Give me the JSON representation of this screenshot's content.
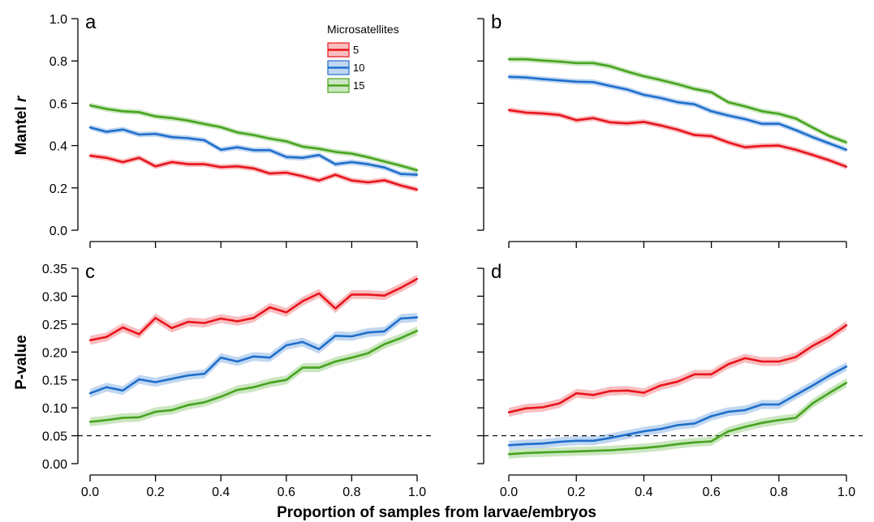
{
  "figure": {
    "x_axis_title": "Proportion of samples from larvae/embryos",
    "y_axis_title_top_main": "Mantel ",
    "y_axis_title_top_italic": "r",
    "y_axis_title_bottom": "P-value",
    "legend_title": "Microsatellites"
  },
  "colors": {
    "5": "#e8141c",
    "10": "#1f6fcc",
    "15": "#46a41e"
  },
  "chart_data": [
    {
      "type": "line",
      "panel": "a",
      "xlim": [
        0,
        1
      ],
      "ylim": [
        0,
        1
      ],
      "x_ticks": [
        0,
        0.2,
        0.4,
        0.6,
        0.8,
        1
      ],
      "x_tick_labels": [
        "0.0",
        "0.2",
        "0.4",
        "0.6",
        "0.8",
        "1.0"
      ],
      "y_ticks": [
        0,
        0.2,
        0.4,
        0.6,
        0.8,
        1
      ],
      "y_tick_labels": [
        "0.0",
        "0.2",
        "0.4",
        "0.6",
        "0.8",
        "1.0"
      ],
      "show_x_tick_labels": false,
      "show_y_tick_labels": true,
      "reference_line": null,
      "band_half_width": 0.013,
      "x": [
        0,
        0.05,
        0.1,
        0.15,
        0.2,
        0.25,
        0.3,
        0.35,
        0.4,
        0.45,
        0.5,
        0.55,
        0.6,
        0.65,
        0.7,
        0.75,
        0.8,
        0.85,
        0.9,
        0.95,
        1.0
      ],
      "series": [
        {
          "name": "5",
          "values": [
            0.352,
            0.342,
            0.322,
            0.342,
            0.302,
            0.322,
            0.312,
            0.312,
            0.298,
            0.302,
            0.292,
            0.268,
            0.272,
            0.255,
            0.235,
            0.262,
            0.235,
            0.226,
            0.236,
            0.212,
            0.192
          ]
        },
        {
          "name": "10",
          "values": [
            0.486,
            0.465,
            0.476,
            0.452,
            0.455,
            0.44,
            0.435,
            0.425,
            0.38,
            0.392,
            0.378,
            0.378,
            0.346,
            0.342,
            0.355,
            0.312,
            0.322,
            0.312,
            0.296,
            0.266,
            0.262
          ]
        },
        {
          "name": "15",
          "values": [
            0.59,
            0.573,
            0.562,
            0.558,
            0.538,
            0.53,
            0.518,
            0.502,
            0.487,
            0.462,
            0.45,
            0.433,
            0.42,
            0.395,
            0.385,
            0.37,
            0.362,
            0.345,
            0.325,
            0.305,
            0.283
          ]
        }
      ]
    },
    {
      "type": "line",
      "panel": "b",
      "xlim": [
        0,
        1
      ],
      "ylim": [
        0,
        1
      ],
      "x_ticks": [
        0,
        0.2,
        0.4,
        0.6,
        0.8,
        1
      ],
      "x_tick_labels": [
        "0.0",
        "0.2",
        "0.4",
        "0.6",
        "0.8",
        "1.0"
      ],
      "y_ticks": [
        0,
        0.2,
        0.4,
        0.6,
        0.8,
        1
      ],
      "y_tick_labels": [
        "0.0",
        "0.2",
        "0.4",
        "0.6",
        "0.8",
        "1.0"
      ],
      "show_x_tick_labels": false,
      "show_y_tick_labels": false,
      "reference_line": null,
      "band_half_width": 0.013,
      "x": [
        0,
        0.05,
        0.1,
        0.15,
        0.2,
        0.25,
        0.3,
        0.35,
        0.4,
        0.45,
        0.5,
        0.55,
        0.6,
        0.65,
        0.7,
        0.75,
        0.8,
        0.85,
        0.9,
        0.95,
        1.0
      ],
      "series": [
        {
          "name": "5",
          "values": [
            0.568,
            0.556,
            0.552,
            0.545,
            0.52,
            0.53,
            0.51,
            0.505,
            0.512,
            0.495,
            0.475,
            0.45,
            0.445,
            0.415,
            0.392,
            0.398,
            0.4,
            0.38,
            0.356,
            0.33,
            0.3
          ]
        },
        {
          "name": "10",
          "values": [
            0.725,
            0.722,
            0.714,
            0.708,
            0.702,
            0.7,
            0.682,
            0.665,
            0.64,
            0.625,
            0.605,
            0.595,
            0.562,
            0.542,
            0.525,
            0.503,
            0.503,
            0.473,
            0.44,
            0.41,
            0.38
          ]
        },
        {
          "name": "15",
          "values": [
            0.808,
            0.808,
            0.802,
            0.797,
            0.79,
            0.79,
            0.775,
            0.75,
            0.728,
            0.71,
            0.69,
            0.668,
            0.652,
            0.605,
            0.585,
            0.562,
            0.55,
            0.528,
            0.485,
            0.445,
            0.415
          ]
        }
      ]
    },
    {
      "type": "line",
      "panel": "c",
      "xlim": [
        0,
        1
      ],
      "ylim": [
        0,
        0.35
      ],
      "x_ticks": [
        0,
        0.2,
        0.4,
        0.6,
        0.8,
        1
      ],
      "x_tick_labels": [
        "0.0",
        "0.2",
        "0.4",
        "0.6",
        "0.8",
        "1.0"
      ],
      "y_ticks": [
        0,
        0.05,
        0.1,
        0.15,
        0.2,
        0.25,
        0.3,
        0.35
      ],
      "y_tick_labels": [
        "0.00",
        "0.05",
        "0.10",
        "0.15",
        "0.20",
        "0.25",
        "0.30",
        "0.35"
      ],
      "show_x_tick_labels": true,
      "show_y_tick_labels": true,
      "reference_line": 0.05,
      "band_half_width": 0.008,
      "x": [
        0,
        0.05,
        0.1,
        0.15,
        0.2,
        0.25,
        0.3,
        0.35,
        0.4,
        0.45,
        0.5,
        0.55,
        0.6,
        0.65,
        0.7,
        0.75,
        0.8,
        0.85,
        0.9,
        0.95,
        1.0
      ],
      "series": [
        {
          "name": "5",
          "values": [
            0.221,
            0.227,
            0.244,
            0.232,
            0.261,
            0.243,
            0.254,
            0.252,
            0.26,
            0.255,
            0.261,
            0.28,
            0.271,
            0.291,
            0.305,
            0.278,
            0.303,
            0.303,
            0.301,
            0.315,
            0.331
          ]
        },
        {
          "name": "10",
          "values": [
            0.126,
            0.137,
            0.131,
            0.151,
            0.146,
            0.152,
            0.158,
            0.161,
            0.19,
            0.183,
            0.192,
            0.19,
            0.212,
            0.218,
            0.205,
            0.229,
            0.228,
            0.235,
            0.237,
            0.26,
            0.262
          ]
        },
        {
          "name": "15",
          "values": [
            0.075,
            0.078,
            0.082,
            0.083,
            0.093,
            0.096,
            0.105,
            0.11,
            0.12,
            0.132,
            0.137,
            0.145,
            0.15,
            0.172,
            0.172,
            0.183,
            0.19,
            0.198,
            0.214,
            0.225,
            0.238
          ]
        }
      ]
    },
    {
      "type": "line",
      "panel": "d",
      "xlim": [
        0,
        1
      ],
      "ylim": [
        0,
        0.35
      ],
      "x_ticks": [
        0,
        0.2,
        0.4,
        0.6,
        0.8,
        1
      ],
      "x_tick_labels": [
        "0.0",
        "0.2",
        "0.4",
        "0.6",
        "0.8",
        "1.0"
      ],
      "y_ticks": [
        0,
        0.05,
        0.1,
        0.15,
        0.2,
        0.25,
        0.3,
        0.35
      ],
      "y_tick_labels": [
        "0.00",
        "0.05",
        "0.10",
        "0.15",
        "0.20",
        "0.25",
        "0.30",
        "0.35"
      ],
      "show_x_tick_labels": true,
      "show_y_tick_labels": false,
      "reference_line": 0.05,
      "band_half_width": 0.008,
      "x": [
        0,
        0.05,
        0.1,
        0.15,
        0.2,
        0.25,
        0.3,
        0.35,
        0.4,
        0.45,
        0.5,
        0.55,
        0.6,
        0.65,
        0.7,
        0.75,
        0.8,
        0.85,
        0.9,
        0.95,
        1.0
      ],
      "series": [
        {
          "name": "5",
          "values": [
            0.092,
            0.099,
            0.101,
            0.108,
            0.126,
            0.123,
            0.13,
            0.131,
            0.127,
            0.14,
            0.147,
            0.16,
            0.16,
            0.178,
            0.189,
            0.183,
            0.183,
            0.191,
            0.211,
            0.227,
            0.248
          ]
        },
        {
          "name": "10",
          "values": [
            0.033,
            0.035,
            0.036,
            0.039,
            0.041,
            0.041,
            0.046,
            0.052,
            0.058,
            0.062,
            0.069,
            0.072,
            0.085,
            0.093,
            0.096,
            0.106,
            0.106,
            0.123,
            0.14,
            0.158,
            0.174
          ]
        },
        {
          "name": "15",
          "values": [
            0.017,
            0.019,
            0.02,
            0.021,
            0.022,
            0.023,
            0.024,
            0.026,
            0.028,
            0.031,
            0.035,
            0.038,
            0.04,
            0.058,
            0.066,
            0.073,
            0.078,
            0.082,
            0.108,
            0.127,
            0.145
          ]
        }
      ]
    }
  ],
  "legend": {
    "items": [
      "5",
      "10",
      "15"
    ]
  }
}
